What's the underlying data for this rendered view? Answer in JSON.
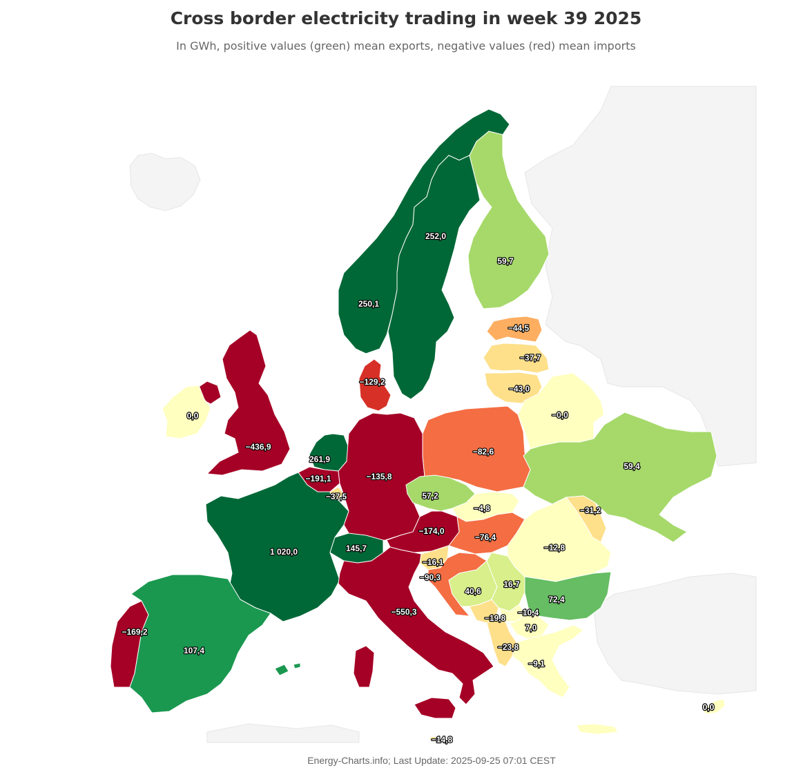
{
  "title": "Cross border electricity trading in week 39 2025",
  "subtitle": "In GWh, positive values (green) mean exports, negative values (red) mean imports",
  "credits": "Energy-Charts.info; Last Update: 2025-09-25 07:01 CEST",
  "colors": {
    "strong_export": "#006837",
    "export": "#1a9850",
    "mid_export": "#66bd63",
    "light_export": "#a6d96a",
    "pale_export": "#d9ef8b",
    "neutral": "#ffffbf",
    "pale_import": "#fee08b",
    "light_import": "#fdae61",
    "import": "#f46d43",
    "mid_import": "#d73027",
    "strong_import": "#a50026",
    "background_land": "#f4f4f4"
  },
  "countries": [
    {
      "id": "NO",
      "value": "252,0",
      "color": "#006837"
    },
    {
      "id": "SE",
      "value": "250,1",
      "color": "#006837"
    },
    {
      "id": "FI",
      "value": "59,7",
      "color": "#a6d96a"
    },
    {
      "id": "EE",
      "value": "−44,5",
      "color": "#fdae61"
    },
    {
      "id": "LV",
      "value": "−37,7",
      "color": "#fee08b"
    },
    {
      "id": "LT",
      "value": "−43,0",
      "color": "#fee08b"
    },
    {
      "id": "DK",
      "value": "−129,2",
      "color": "#d73027"
    },
    {
      "id": "GB",
      "value": "−436,9",
      "color": "#a50026"
    },
    {
      "id": "IE",
      "value": "0,0",
      "color": "#ffffbf"
    },
    {
      "id": "NL",
      "value": "261,9",
      "color": "#006837"
    },
    {
      "id": "BE",
      "value": "−191,1",
      "color": "#a50026"
    },
    {
      "id": "LU",
      "value": "−37,5",
      "color": "#fee08b"
    },
    {
      "id": "DE",
      "value": "−135,8",
      "color": "#a50026"
    },
    {
      "id": "PL",
      "value": "−82,6",
      "color": "#f46d43"
    },
    {
      "id": "BY",
      "value": "−0,0",
      "color": "#ffffbf"
    },
    {
      "id": "UA",
      "value": "59,4",
      "color": "#a6d96a"
    },
    {
      "id": "FR",
      "value": "1 020,0",
      "color": "#006837"
    },
    {
      "id": "CZ",
      "value": "57,2",
      "color": "#a6d96a"
    },
    {
      "id": "SK",
      "value": "−4,8",
      "color": "#ffffbf"
    },
    {
      "id": "MD",
      "value": "−31,2",
      "color": "#fee08b"
    },
    {
      "id": "AT",
      "value": "−174,0",
      "color": "#a50026"
    },
    {
      "id": "HU",
      "value": "−76,4",
      "color": "#f46d43"
    },
    {
      "id": "CH",
      "value": "145,7",
      "color": "#006837"
    },
    {
      "id": "RO",
      "value": "−12,8",
      "color": "#ffffbf"
    },
    {
      "id": "SI",
      "value": "−16,1",
      "color": "#fee08b"
    },
    {
      "id": "HR",
      "value": "−90,3",
      "color": "#f46d43"
    },
    {
      "id": "BA",
      "value": "40,6",
      "color": "#d9ef8b"
    },
    {
      "id": "RS",
      "value": "16,7",
      "color": "#d9ef8b"
    },
    {
      "id": "BG",
      "value": "72,4",
      "color": "#66bd63"
    },
    {
      "id": "IT",
      "value": "−550,3",
      "color": "#a50026"
    },
    {
      "id": "ME",
      "value": "−19,8",
      "color": "#fee08b"
    },
    {
      "id": "XK",
      "value": "−10,4",
      "color": "#ffffbf"
    },
    {
      "id": "MK",
      "value": "7,0",
      "color": "#ffffbf"
    },
    {
      "id": "AL",
      "value": "−23,8",
      "color": "#fee08b"
    },
    {
      "id": "GR",
      "value": "−9,1",
      "color": "#ffffbf"
    },
    {
      "id": "PT",
      "value": "−169,2",
      "color": "#a50026"
    },
    {
      "id": "ES",
      "value": "107,4",
      "color": "#1a9850"
    },
    {
      "id": "CY",
      "value": "0,0",
      "color": "#ffffbf"
    },
    {
      "id": "MT",
      "value": "−14,8",
      "color": "#fee08b"
    }
  ]
}
